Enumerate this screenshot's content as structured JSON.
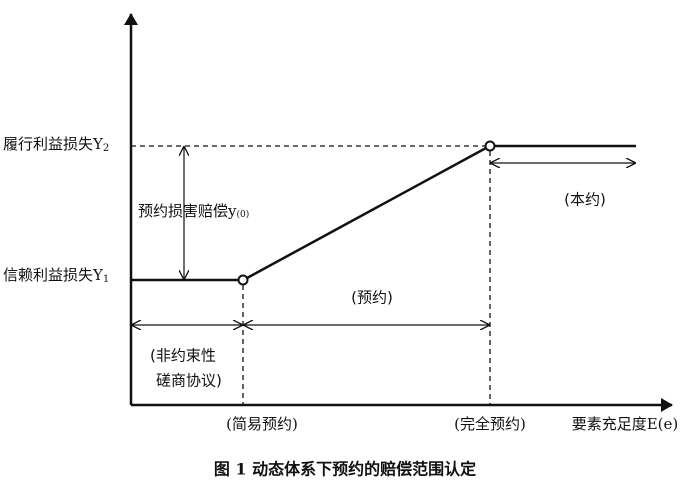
{
  "y_axis": {
    "upper_label": {
      "text": "履行利益损失Y",
      "sub": "2"
    },
    "lower_label": {
      "text": "信赖利益损失Y",
      "sub": "1"
    }
  },
  "gap_label": {
    "text": "预约损害赔偿y",
    "sub": "(0)"
  },
  "regions": {
    "main_contract": "(本约)",
    "preliminary": "(预约)",
    "non_binding_line1": "(非约束性",
    "non_binding_line2": "磋商协议)"
  },
  "x_axis": {
    "simple": "(简易预约)",
    "complete": "(完全预约)",
    "label": "要素充足度E(e)"
  },
  "caption": "图 1 动态体系下预约的赔偿范围认定"
}
